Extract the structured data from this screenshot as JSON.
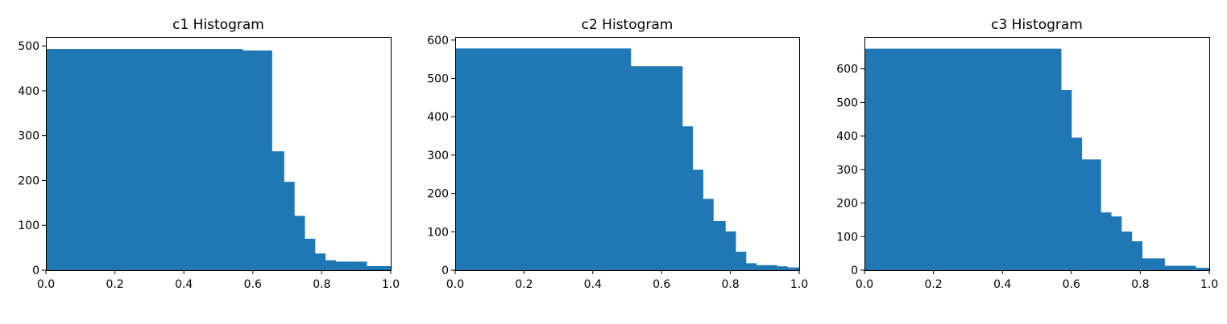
{
  "figure": {
    "bar_color": "#1f77b4",
    "background": "#ffffff"
  },
  "chart_data": [
    {
      "type": "bar",
      "title": "c1 Histogram",
      "xlabel": "",
      "ylabel": "",
      "xlim": [
        0.0,
        1.0
      ],
      "ylim": [
        0,
        520
      ],
      "xticks": [
        0.0,
        0.2,
        0.4,
        0.6,
        0.8,
        1.0
      ],
      "xtick_labels": [
        "0.0",
        "0.2",
        "0.4",
        "0.6",
        "0.8",
        "1.0"
      ],
      "yticks": [
        0,
        100,
        200,
        300,
        400,
        500
      ],
      "ytick_labels": [
        "0",
        "100",
        "200",
        "300",
        "400",
        "500"
      ],
      "grid": false,
      "bins": [
        {
          "x0": 0.0,
          "x1": 0.57,
          "value": 493
        },
        {
          "x0": 0.57,
          "x1": 0.655,
          "value": 490
        },
        {
          "x0": 0.655,
          "x1": 0.69,
          "value": 265
        },
        {
          "x0": 0.69,
          "x1": 0.72,
          "value": 197
        },
        {
          "x0": 0.72,
          "x1": 0.75,
          "value": 121
        },
        {
          "x0": 0.75,
          "x1": 0.78,
          "value": 70
        },
        {
          "x0": 0.78,
          "x1": 0.81,
          "value": 37
        },
        {
          "x0": 0.81,
          "x1": 0.84,
          "value": 22
        },
        {
          "x0": 0.84,
          "x1": 0.93,
          "value": 19
        },
        {
          "x0": 0.93,
          "x1": 1.0,
          "value": 9
        }
      ]
    },
    {
      "type": "bar",
      "title": "c2 Histogram",
      "xlabel": "",
      "ylabel": "",
      "xlim": [
        0.0,
        1.0
      ],
      "ylim": [
        0,
        608
      ],
      "xticks": [
        0.0,
        0.2,
        0.4,
        0.6,
        0.8,
        1.0
      ],
      "xtick_labels": [
        "0.0",
        "0.2",
        "0.4",
        "0.6",
        "0.8",
        "1.0"
      ],
      "yticks": [
        0,
        100,
        200,
        300,
        400,
        500,
        600
      ],
      "ytick_labels": [
        "0",
        "100",
        "200",
        "300",
        "400",
        "500",
        "600"
      ],
      "grid": false,
      "bins": [
        {
          "x0": 0.0,
          "x1": 0.51,
          "value": 578
        },
        {
          "x0": 0.51,
          "x1": 0.66,
          "value": 532
        },
        {
          "x0": 0.66,
          "x1": 0.69,
          "value": 375
        },
        {
          "x0": 0.69,
          "x1": 0.72,
          "value": 262
        },
        {
          "x0": 0.72,
          "x1": 0.75,
          "value": 186
        },
        {
          "x0": 0.75,
          "x1": 0.785,
          "value": 128
        },
        {
          "x0": 0.785,
          "x1": 0.815,
          "value": 101
        },
        {
          "x0": 0.815,
          "x1": 0.845,
          "value": 48
        },
        {
          "x0": 0.845,
          "x1": 0.875,
          "value": 18
        },
        {
          "x0": 0.875,
          "x1": 0.935,
          "value": 13
        },
        {
          "x0": 0.935,
          "x1": 0.965,
          "value": 10
        },
        {
          "x0": 0.965,
          "x1": 1.0,
          "value": 7
        }
      ]
    },
    {
      "type": "bar",
      "title": "c3 Histogram",
      "xlabel": "",
      "ylabel": "",
      "xlim": [
        0.0,
        1.0
      ],
      "ylim": [
        0,
        695
      ],
      "xticks": [
        0.0,
        0.2,
        0.4,
        0.6,
        0.8,
        1.0
      ],
      "xtick_labels": [
        "0.0",
        "0.2",
        "0.4",
        "0.6",
        "0.8",
        "1.0"
      ],
      "yticks": [
        0,
        100,
        200,
        300,
        400,
        500,
        600
      ],
      "ytick_labels": [
        "0",
        "100",
        "200",
        "300",
        "400",
        "500",
        "600"
      ],
      "grid": false,
      "bins": [
        {
          "x0": 0.0,
          "x1": 0.57,
          "value": 660
        },
        {
          "x0": 0.57,
          "x1": 0.6,
          "value": 537
        },
        {
          "x0": 0.6,
          "x1": 0.63,
          "value": 395
        },
        {
          "x0": 0.63,
          "x1": 0.685,
          "value": 330
        },
        {
          "x0": 0.685,
          "x1": 0.715,
          "value": 172
        },
        {
          "x0": 0.715,
          "x1": 0.745,
          "value": 160
        },
        {
          "x0": 0.745,
          "x1": 0.775,
          "value": 115
        },
        {
          "x0": 0.775,
          "x1": 0.805,
          "value": 86
        },
        {
          "x0": 0.805,
          "x1": 0.87,
          "value": 35
        },
        {
          "x0": 0.87,
          "x1": 0.96,
          "value": 13
        },
        {
          "x0": 0.96,
          "x1": 1.0,
          "value": 7
        }
      ]
    }
  ]
}
